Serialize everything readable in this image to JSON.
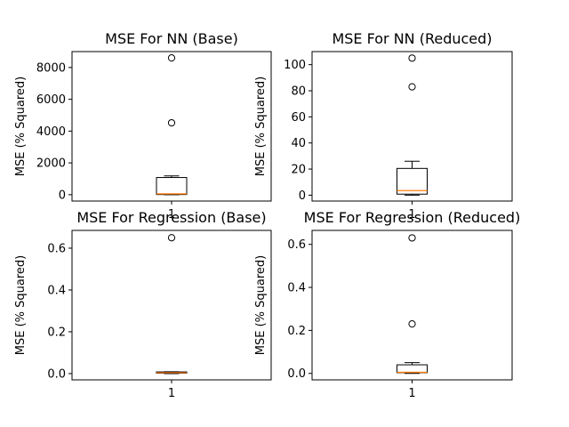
{
  "chart_data": [
    {
      "type": "box",
      "title": "MSE For NN (Base)",
      "ylabel": "MSE (% Squared)",
      "xlabel": "",
      "categories": [
        "1"
      ],
      "ylim": [
        -400,
        9000
      ],
      "yticks": [
        0,
        2000,
        4000,
        6000,
        8000
      ],
      "ytick_labels": [
        "0",
        "2000",
        "4000",
        "6000",
        "8000"
      ],
      "box": {
        "whisker_low": 0,
        "q1": 10,
        "median": 50,
        "q3": 1080,
        "whisker_high": 1180
      },
      "outliers": [
        4520,
        8600
      ],
      "grid": false,
      "legend": "none"
    },
    {
      "type": "box",
      "title": "MSE For NN (Reduced)",
      "ylabel": "MSE (% Squared)",
      "xlabel": "",
      "categories": [
        "1"
      ],
      "ylim": [
        -4.5,
        110
      ],
      "yticks": [
        0,
        20,
        40,
        60,
        80,
        100
      ],
      "ytick_labels": [
        "0",
        "20",
        "40",
        "60",
        "80",
        "100"
      ],
      "box": {
        "whisker_low": 0,
        "q1": 0.8,
        "median": 3.5,
        "q3": 20.5,
        "whisker_high": 26
      },
      "outliers": [
        83,
        105
      ],
      "grid": false,
      "legend": "none"
    },
    {
      "type": "box",
      "title": "MSE For Regression (Base)",
      "ylabel": "MSE (% Squared)",
      "xlabel": "",
      "categories": [
        "1"
      ],
      "ylim": [
        -0.03,
        0.685
      ],
      "yticks": [
        0,
        0.2,
        0.4,
        0.6
      ],
      "ytick_labels": [
        "0.0",
        "0.2",
        "0.4",
        "0.6"
      ],
      "box": {
        "whisker_low": 0.0,
        "q1": 0.002,
        "median": 0.004,
        "q3": 0.008,
        "whisker_high": 0.009
      },
      "outliers": [
        0.65
      ],
      "grid": false,
      "legend": "none"
    },
    {
      "type": "box",
      "title": "MSE For Regression (Reduced)",
      "ylabel": "MSE (% Squared)",
      "xlabel": "",
      "categories": [
        "1"
      ],
      "ylim": [
        -0.03,
        0.665
      ],
      "yticks": [
        0,
        0.2,
        0.4,
        0.6
      ],
      "ytick_labels": [
        "0.0",
        "0.2",
        "0.4",
        "0.6"
      ],
      "box": {
        "whisker_low": 0.0,
        "q1": 0.003,
        "median": 0.005,
        "q3": 0.04,
        "whisker_high": 0.05
      },
      "outliers": [
        0.23,
        0.63
      ],
      "grid": false,
      "legend": "none"
    }
  ],
  "colors": {
    "box": "#000000",
    "median": "#ff7f0e",
    "flier": "#000000",
    "background": "#ffffff"
  }
}
